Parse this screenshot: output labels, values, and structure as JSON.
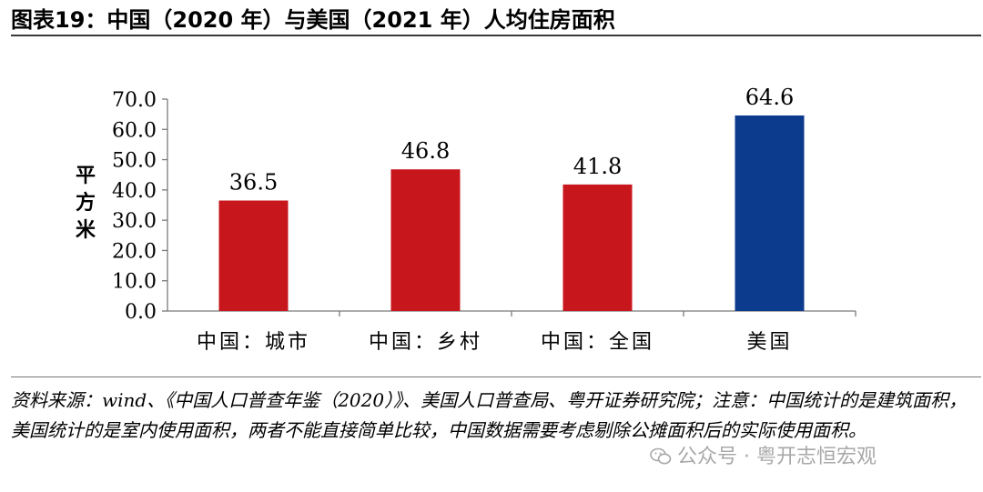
{
  "title": "图表19：中国（2020 年）与美国（2021 年）人均住房面积",
  "source": "资料来源：wind、《中国人口普查年鉴（2020）》、美国人口普查局、粤开证券研究院；注意：中国统计的是建筑面积，美国统计的是室内使用面积，两者不能直接简单比较，中国数据需要考虑剔除公摊面积后的实际使用面积。",
  "watermark": "公众号 · 粤开志恒宏观",
  "colors": {
    "china": "#c8161d",
    "usa": "#0c3a8c"
  },
  "chart_data": {
    "type": "bar",
    "categories": [
      "中国：城市",
      "中国：乡村",
      "中国：全国",
      "美国"
    ],
    "values": [
      36.5,
      46.8,
      41.8,
      64.6
    ],
    "value_labels": [
      "36.5",
      "46.8",
      "41.8",
      "64.6"
    ],
    "ylabel": "平方米",
    "ylim": [
      0,
      70
    ],
    "yticks": [
      "0.0",
      "10.0",
      "20.0",
      "30.0",
      "40.0",
      "50.0",
      "60.0",
      "70.0"
    ],
    "grid": false,
    "bar_colors": [
      "#c8161d",
      "#c8161d",
      "#c8161d",
      "#0c3a8c"
    ]
  }
}
